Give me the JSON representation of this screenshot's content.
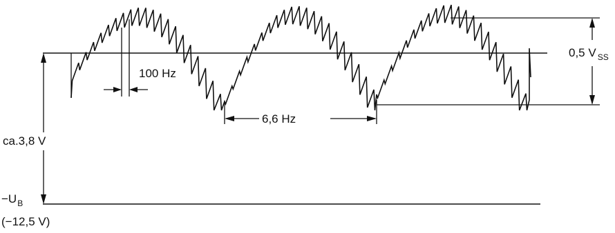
{
  "labels": {
    "freq_ripple": "100 Hz",
    "freq_envelope": "6,6 Hz",
    "amplitude_main": "0,5 V",
    "amplitude_sub": "SS",
    "offset": "ca.3,8 V",
    "ub_main": "−U",
    "ub_sub": "B",
    "ub_value": "(−12,5 V)"
  }
}
